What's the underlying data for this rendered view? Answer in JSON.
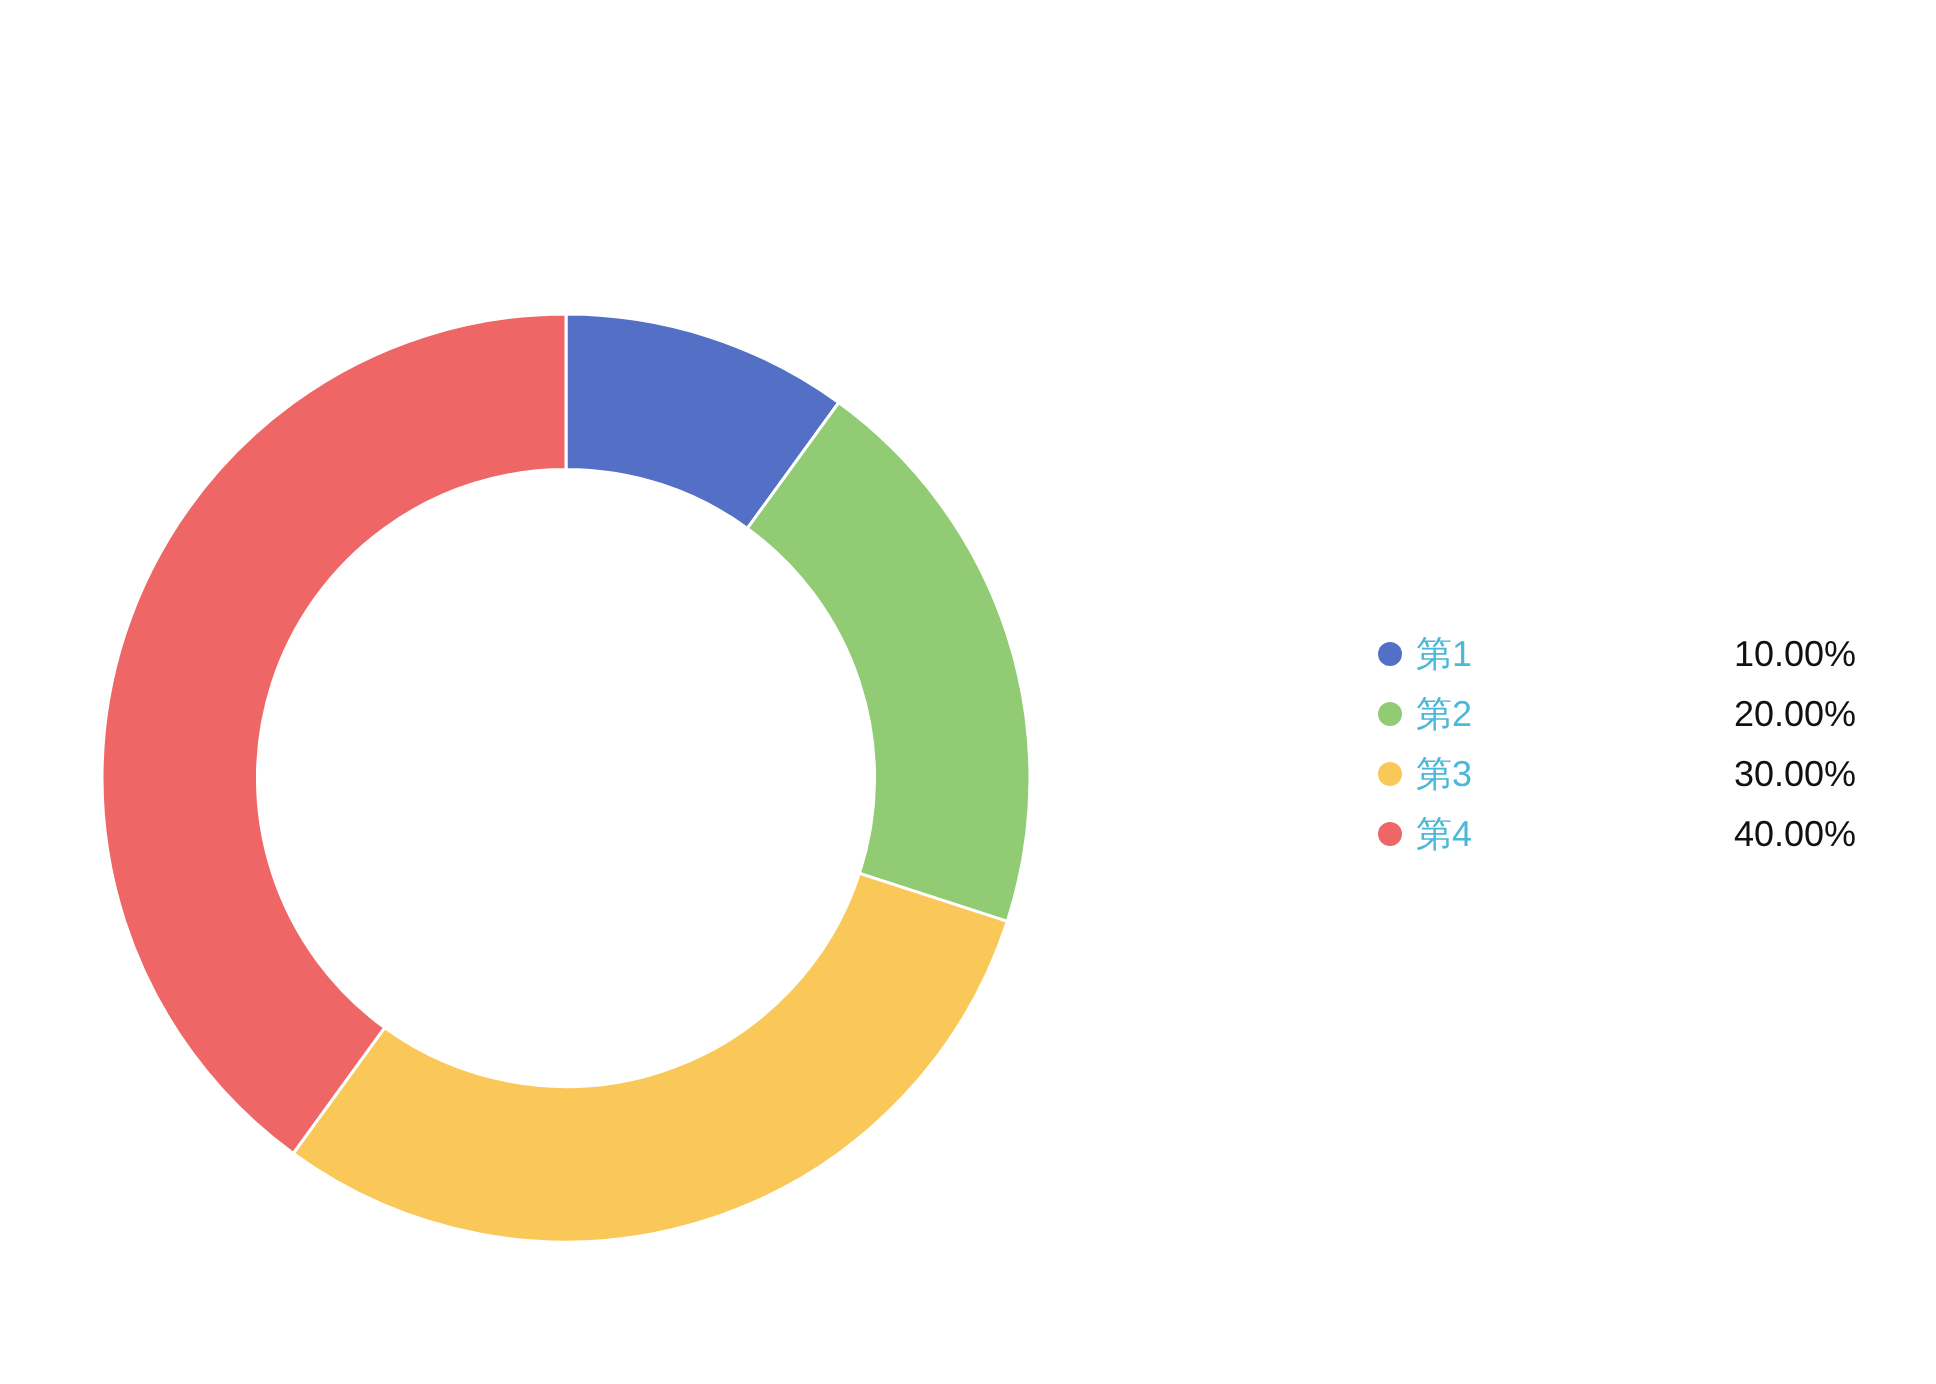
{
  "chart_data": {
    "type": "donut",
    "categories": [
      "第1",
      "第2",
      "第3",
      "第4"
    ],
    "values": [
      10,
      20,
      30,
      40
    ],
    "colors": [
      "#5470c6",
      "#91cc75",
      "#fac858",
      "#ee6666"
    ],
    "value_labels": [
      "10.00%",
      "20.00%",
      "30.00%",
      "40.00%"
    ],
    "legend": "right"
  }
}
